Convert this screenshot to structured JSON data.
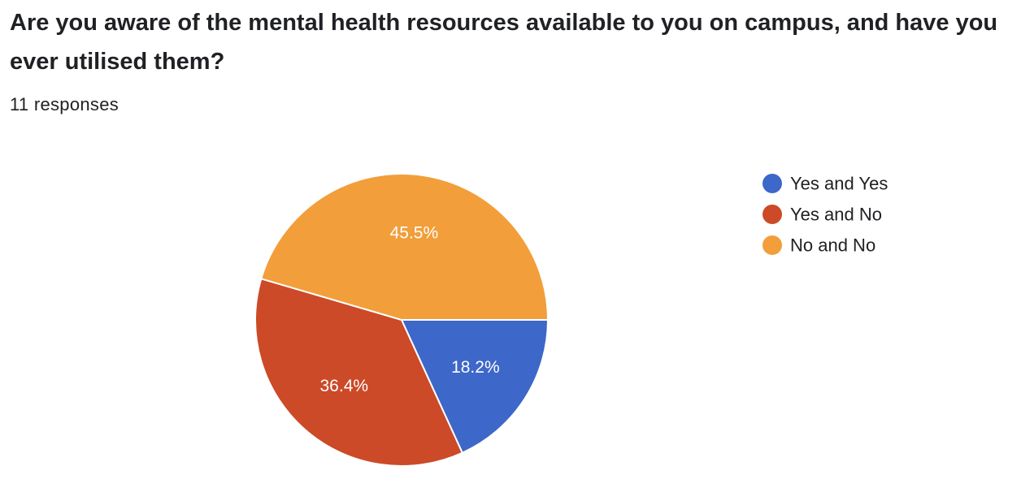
{
  "question": {
    "title": "Are you aware of the mental health resources available to you on campus, and have you ever utilised them?",
    "responses": "11 responses"
  },
  "chart_data": {
    "type": "pie",
    "series": [
      {
        "label": "Yes and Yes",
        "value": 18.2,
        "display": "18.2%",
        "color": "#3d67c8"
      },
      {
        "label": "Yes and No",
        "value": 36.4,
        "display": "36.4%",
        "color": "#cc4a27"
      },
      {
        "label": "No and No",
        "value": 45.5,
        "display": "45.5%",
        "color": "#f29e3a"
      }
    ],
    "legend_position": "right"
  }
}
